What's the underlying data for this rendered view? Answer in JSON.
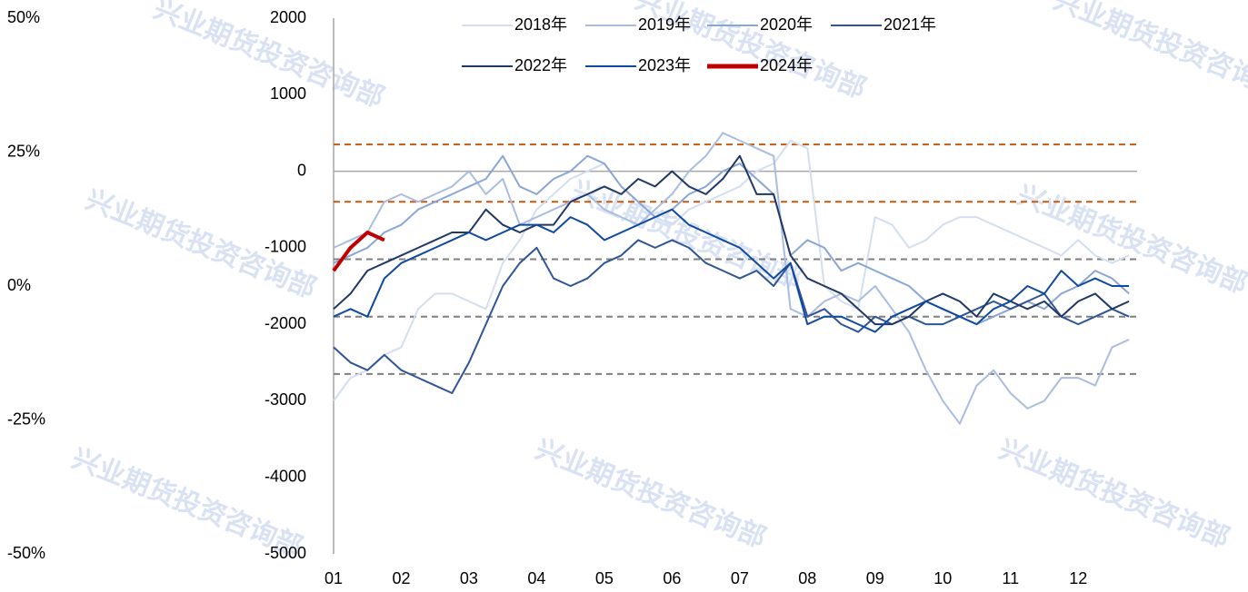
{
  "chart_data": {
    "type": "line",
    "watermark": "兴业期货投资咨询部",
    "x": [
      1,
      1.25,
      1.5,
      1.75,
      2,
      2.25,
      2.5,
      2.75,
      3,
      3.25,
      3.5,
      3.75,
      4,
      4.25,
      4.5,
      4.75,
      5,
      5.25,
      5.5,
      5.75,
      6,
      6.25,
      6.5,
      6.75,
      7,
      7.25,
      7.5,
      7.75,
      8,
      8.25,
      8.5,
      8.75,
      9,
      9.25,
      9.5,
      9.75,
      10,
      10.25,
      10.5,
      10.75,
      11,
      11.25,
      11.5,
      11.75,
      12,
      12.25,
      12.5,
      12.75
    ],
    "xlim": [
      1,
      12.87
    ],
    "xticks": [
      {
        "value": 1,
        "label": "01"
      },
      {
        "value": 2,
        "label": "02"
      },
      {
        "value": 3,
        "label": "03"
      },
      {
        "value": 4,
        "label": "04"
      },
      {
        "value": 5,
        "label": "05"
      },
      {
        "value": 6,
        "label": "06"
      },
      {
        "value": 7,
        "label": "07"
      },
      {
        "value": 8,
        "label": "08"
      },
      {
        "value": 9,
        "label": "09"
      },
      {
        "value": 10,
        "label": "10"
      },
      {
        "value": 11,
        "label": "11"
      },
      {
        "value": 12,
        "label": "12"
      }
    ],
    "ylim": [
      -5000,
      2000
    ],
    "yticks": [
      -5000,
      -4000,
      -3000,
      -2000,
      -1000,
      0,
      1000,
      2000
    ],
    "y2lim": [
      -50,
      50
    ],
    "y2ticks": [
      {
        "value": -50,
        "label": "-50%"
      },
      {
        "value": -25,
        "label": "-25%"
      },
      {
        "value": 0,
        "label": "0%"
      },
      {
        "value": 25,
        "label": "25%"
      },
      {
        "value": 50,
        "label": "50%"
      }
    ],
    "reference_lines": [
      {
        "value": 350,
        "color": "#c55a11"
      },
      {
        "value": -400,
        "color": "#c55a11"
      },
      {
        "value": -1150,
        "color": "#7f7f7f"
      },
      {
        "value": -1900,
        "color": "#7f7f7f"
      },
      {
        "value": -2650,
        "color": "#7f7f7f"
      }
    ],
    "series": [
      {
        "name": "2018年",
        "color": "#d3def0",
        "values": [
          -3000,
          -2700,
          -2600,
          -2400,
          -2300,
          -1800,
          -1600,
          -1600,
          -1700,
          -1800,
          -1200,
          -900,
          -500,
          -300,
          -100,
          0,
          100,
          -200,
          -400,
          -600,
          -700,
          -500,
          -400,
          -300,
          -200,
          0,
          100,
          400,
          300,
          -1500,
          -1700,
          -1800,
          -600,
          -700,
          -1000,
          -900,
          -700,
          -600,
          -600,
          -700,
          -800,
          -900,
          -1000,
          -1100,
          -900,
          -1100,
          -1200,
          -1100
        ]
      },
      {
        "name": "2019年",
        "color": "#a8bde0",
        "values": [
          -1000,
          -900,
          -800,
          -400,
          -300,
          -400,
          -300,
          -200,
          0,
          -300,
          -100,
          -700,
          -600,
          -500,
          -400,
          -300,
          -500,
          -600,
          -700,
          -500,
          -300,
          0,
          200,
          500,
          400,
          300,
          200,
          -1800,
          -1900,
          -1700,
          -1600,
          -1700,
          -1500,
          -1800,
          -2100,
          -2600,
          -3000,
          -3300,
          -2800,
          -2600,
          -2900,
          -3100,
          -3000,
          -2700,
          -2700,
          -2800,
          -2300,
          -2200
        ]
      },
      {
        "name": "2020年",
        "color": "#8aa6d6",
        "values": [
          -1200,
          -1100,
          -1000,
          -800,
          -700,
          -500,
          -400,
          -300,
          -200,
          -100,
          200,
          -200,
          -300,
          -100,
          0,
          200,
          100,
          -200,
          -400,
          -600,
          -500,
          -300,
          -200,
          0,
          100,
          -100,
          -300,
          -1100,
          -900,
          -1000,
          -1300,
          -1200,
          -1300,
          -1400,
          -1500,
          -1700,
          -1800,
          -1900,
          -2000,
          -1900,
          -1800,
          -1700,
          -1800,
          -1600,
          -1500,
          -1300,
          -1400,
          -1600
        ]
      },
      {
        "name": "2021年",
        "color": "#2f5597",
        "values": [
          -2300,
          -2500,
          -2600,
          -2400,
          -2600,
          -2700,
          -2800,
          -2900,
          -2500,
          -2000,
          -1500,
          -1200,
          -1000,
          -1400,
          -1500,
          -1400,
          -1200,
          -1100,
          -900,
          -1000,
          -900,
          -1000,
          -1200,
          -1300,
          -1400,
          -1300,
          -1500,
          -1200,
          -1900,
          -1800,
          -2000,
          -2100,
          -1900,
          -2000,
          -1900,
          -2000,
          -2000,
          -1900,
          -1800,
          -1700,
          -1800,
          -1700,
          -1600,
          -1900,
          -2000,
          -1900,
          -1800,
          -1900
        ]
      },
      {
        "name": "2022年",
        "color": "#1f3864",
        "values": [
          -1800,
          -1600,
          -1300,
          -1200,
          -1100,
          -1000,
          -900,
          -800,
          -800,
          -500,
          -700,
          -800,
          -700,
          -700,
          -400,
          -300,
          -200,
          -300,
          -100,
          -200,
          0,
          -200,
          -300,
          -100,
          200,
          -300,
          -300,
          -1100,
          -1400,
          -1500,
          -1600,
          -1800,
          -2000,
          -2000,
          -1900,
          -1700,
          -1600,
          -1700,
          -1900,
          -1600,
          -1700,
          -1800,
          -1700,
          -1900,
          -1700,
          -1600,
          -1800,
          -1700
        ]
      },
      {
        "name": "2023年",
        "color": "#0f4aa0",
        "values": [
          -1900,
          -1800,
          -1900,
          -1400,
          -1200,
          -1100,
          -1000,
          -900,
          -800,
          -900,
          -800,
          -700,
          -700,
          -800,
          -600,
          -700,
          -900,
          -800,
          -700,
          -600,
          -500,
          -700,
          -800,
          -900,
          -1000,
          -1200,
          -1400,
          -1200,
          -2000,
          -1900,
          -1900,
          -2000,
          -2100,
          -1900,
          -1800,
          -1700,
          -1800,
          -1900,
          -2000,
          -1800,
          -1700,
          -1500,
          -1600,
          -1300,
          -1500,
          -1400,
          -1500,
          -1500
        ]
      },
      {
        "name": "2024年",
        "color": "#c00000",
        "values": [
          -1300,
          -1000,
          -800,
          -900,
          null,
          null,
          null,
          null,
          null,
          null,
          null,
          null,
          null,
          null,
          null,
          null,
          null,
          null,
          null,
          null,
          null,
          null,
          null,
          null,
          null,
          null,
          null,
          null,
          null,
          null,
          null,
          null,
          null,
          null,
          null,
          null,
          null,
          null,
          null,
          null,
          null,
          null,
          null,
          null,
          null,
          null,
          null,
          null
        ]
      }
    ]
  }
}
